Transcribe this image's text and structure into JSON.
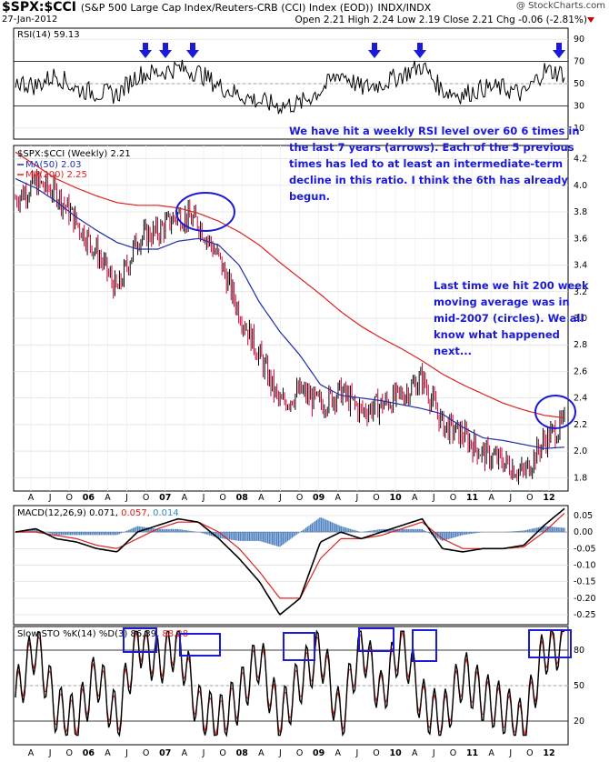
{
  "header": {
    "symbol": "$SPX:$CCI",
    "description": "(S&P 500 Large Cap Index/Reuters-CRB (CCI) Index (EOD))",
    "exchange": "INDX/INDX",
    "date": "27-Jan-2012",
    "ohlc": "Open 2.21  High 2.24  Low 2.19  Close 2.21  Chg -0.06 (-2.81%)",
    "watermark": "@ StockCharts.com"
  },
  "colors": {
    "price_up": "#000000",
    "price_down": "#cc0033",
    "ma50": "#1e2fa8",
    "ma200": "#dd2222",
    "annotation": "#1a1ad8",
    "macd_hist": "#4a7fc0",
    "rsi_fill": "#a05050"
  },
  "panels": {
    "rsi": {
      "label": "RSI(14) 59.13",
      "ticks": [
        "90",
        "70",
        "50",
        "30",
        "10"
      ]
    },
    "price": {
      "label": "$SPX:$CCI (Weekly) 2.21",
      "ma50_label": "MA(50) 2.03",
      "ma200_label": "MA(200) 2.25",
      "ticks": [
        "4.2",
        "4.0",
        "3.8",
        "3.6",
        "3.4",
        "3.2",
        "3.0",
        "2.8",
        "2.6",
        "2.4",
        "2.2",
        "2.0",
        "1.8"
      ]
    },
    "macd": {
      "label_prefix": "MACD(12,26,9)",
      "v1": "0.071,",
      "v2": "0.057,",
      "v3": "0.014",
      "ticks": [
        "0.05",
        "0.00",
        "-0.05",
        "-0.10",
        "-0.15",
        "-0.20",
        "-0.25"
      ]
    },
    "sto": {
      "label_prefix": "Slow STO %K(14) %D(3)",
      "v1": "86.39,",
      "v2": "88.28",
      "ticks": [
        "80",
        "50",
        "20"
      ]
    }
  },
  "x_axis": {
    "labels": [
      "A",
      "J",
      "O",
      "06",
      "A",
      "J",
      "O",
      "07",
      "A",
      "J",
      "O",
      "08",
      "A",
      "J",
      "O",
      "09",
      "A",
      "J",
      "O",
      "10",
      "A",
      "J",
      "O",
      "11",
      "A",
      "J",
      "O",
      "12"
    ]
  },
  "annotations": {
    "box1": [
      "We have hit a weekly RSI level over 60 6 times in",
      "the last 7 years (arrows). Each of the 5 previous",
      "times has led to at least an intermediate-term",
      "decline in this ratio. I think the 6th has already",
      "begun."
    ],
    "box2": [
      "Last time we hit 200 week",
      "moving average was in",
      "mid-2007 (circles). We all",
      "know what happened",
      "next..."
    ]
  },
  "chart_data": [
    {
      "type": "line",
      "title": "$SPX:$CCI (Weekly)",
      "ylim": [
        1.7,
        4.3
      ],
      "x": [
        "2005-04",
        "2005-07",
        "2005-10",
        "2006-01",
        "2006-04",
        "2006-07",
        "2006-10",
        "2007-01",
        "2007-04",
        "2007-07",
        "2007-10",
        "2008-01",
        "2008-04",
        "2008-07",
        "2008-10",
        "2009-01",
        "2009-04",
        "2009-07",
        "2009-10",
        "2010-01",
        "2010-04",
        "2010-07",
        "2010-10",
        "2011-01",
        "2011-04",
        "2011-07",
        "2011-10",
        "2012-01"
      ],
      "series": [
        {
          "name": "$SPX:$CCI",
          "values": [
            3.9,
            4.02,
            3.95,
            3.72,
            3.5,
            3.2,
            3.6,
            3.65,
            3.78,
            3.72,
            3.45,
            3.05,
            2.72,
            2.35,
            2.45,
            2.35,
            2.45,
            2.3,
            2.35,
            2.42,
            2.55,
            2.2,
            2.12,
            1.98,
            1.92,
            1.83,
            2.08,
            2.21
          ]
        },
        {
          "name": "MA(50)",
          "values": [
            4.05,
            3.98,
            3.88,
            3.76,
            3.66,
            3.57,
            3.52,
            3.52,
            3.58,
            3.6,
            3.55,
            3.4,
            3.12,
            2.9,
            2.72,
            2.5,
            2.42,
            2.4,
            2.38,
            2.35,
            2.32,
            2.28,
            2.18,
            2.1,
            2.08,
            2.05,
            2.02,
            2.03
          ]
        },
        {
          "name": "MA(200)",
          "values": [
            4.25,
            4.15,
            4.05,
            3.98,
            3.92,
            3.87,
            3.85,
            3.85,
            3.83,
            3.79,
            3.73,
            3.65,
            3.55,
            3.42,
            3.3,
            3.18,
            3.05,
            2.94,
            2.85,
            2.77,
            2.68,
            2.58,
            2.5,
            2.43,
            2.36,
            2.31,
            2.27,
            2.25
          ]
        }
      ]
    },
    {
      "type": "line",
      "title": "RSI(14)",
      "ylim": [
        0,
        100
      ],
      "series": [
        {
          "name": "RSI(14)",
          "values": [
            52,
            48,
            58,
            45,
            42,
            40,
            58,
            60,
            64,
            60,
            48,
            40,
            34,
            30,
            32,
            44,
            60,
            46,
            50,
            58,
            66,
            44,
            40,
            46,
            46,
            40,
            62,
            59
          ]
        }
      ]
    },
    {
      "type": "line",
      "title": "MACD(12,26,9)",
      "ylim": [
        -0.28,
        0.08
      ],
      "series": [
        {
          "name": "MACD",
          "values": [
            0.0,
            0.01,
            -0.02,
            -0.03,
            -0.05,
            -0.06,
            0.0,
            0.02,
            0.04,
            0.03,
            -0.02,
            -0.08,
            -0.15,
            -0.25,
            -0.2,
            -0.03,
            0.0,
            -0.02,
            0.0,
            0.02,
            0.04,
            -0.05,
            -0.06,
            -0.05,
            -0.05,
            -0.04,
            0.02,
            0.071
          ]
        },
        {
          "name": "Signal",
          "values": [
            0.0,
            0.0,
            -0.01,
            -0.02,
            -0.04,
            -0.05,
            -0.02,
            0.01,
            0.03,
            0.03,
            0.0,
            -0.05,
            -0.12,
            -0.2,
            -0.2,
            -0.08,
            -0.02,
            -0.02,
            -0.01,
            0.01,
            0.03,
            -0.02,
            -0.05,
            -0.05,
            -0.05,
            -0.045,
            0.0,
            0.057
          ]
        }
      ]
    },
    {
      "type": "line",
      "title": "Slow STO %K(14) %D(3)",
      "ylim": [
        0,
        100
      ],
      "series": [
        {
          "name": "%K",
          "values": [
            40,
            85,
            30,
            20,
            60,
            20,
            90,
            70,
            88,
            30,
            20,
            40,
            75,
            20,
            55,
            80,
            20,
            88,
            40,
            90,
            35,
            20,
            60,
            40,
            30,
            15,
            80,
            86.39
          ]
        },
        {
          "name": "%D",
          "values": [
            45,
            80,
            35,
            25,
            55,
            25,
            85,
            72,
            85,
            35,
            25,
            38,
            70,
            25,
            50,
            75,
            25,
            85,
            45,
            85,
            40,
            25,
            55,
            42,
            32,
            18,
            75,
            88.28
          ]
        }
      ]
    }
  ]
}
